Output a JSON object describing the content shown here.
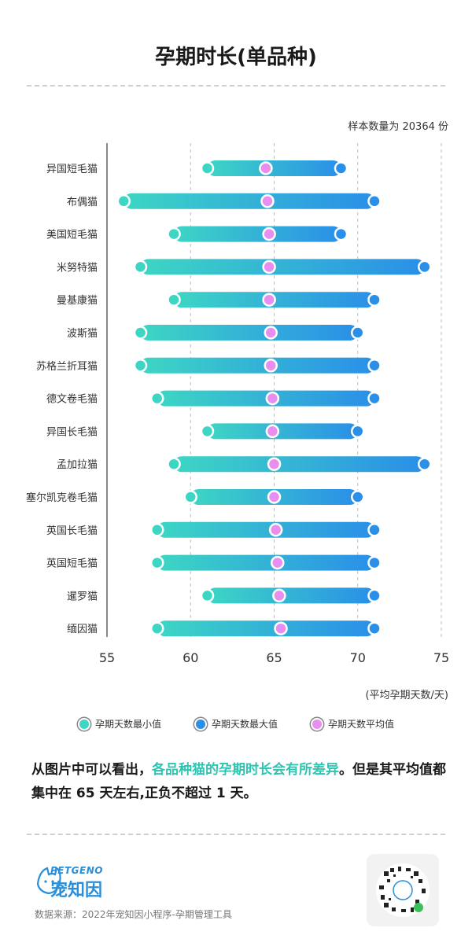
{
  "title": "孕期时长(单品种)",
  "sample_note": "样本数量为 20364 份",
  "unit_note": "(平均孕期天数/天)",
  "legend": {
    "min": "孕期天数最小值",
    "max": "孕期天数最大值",
    "avg": "孕期天数平均值"
  },
  "summary": {
    "part1": "从图片中可以看出，",
    "highlight": "各品种猫的孕期时长会有所差异",
    "part2": "。但是其平均值都集中在 65 天左右,正负不超过 1 天。"
  },
  "brand": {
    "en": "PETGENO",
    "cn": "宠知因"
  },
  "source": "数据来源：2022年宠知因小程序-孕期管理工具",
  "colors": {
    "min": "#3dd6c4",
    "max": "#2a8fe8",
    "avg": "#e88ef0",
    "highlight": "#2ec4b2"
  },
  "chart_data": {
    "type": "range-dot",
    "xlim": [
      55,
      75
    ],
    "xticks": [
      55,
      60,
      65,
      70,
      75
    ],
    "categories": [
      "异国短毛猫",
      "布偶猫",
      "美国短毛猫",
      "米努特猫",
      "曼基康猫",
      "波斯猫",
      "苏格兰折耳猫",
      "德文卷毛猫",
      "异国长毛猫",
      "孟加拉猫",
      "塞尔凯克卷毛猫",
      "英国长毛猫",
      "英国短毛猫",
      "暹罗猫",
      "缅因猫"
    ],
    "series": [
      {
        "name": "孕期天数最小值",
        "values": [
          61,
          56,
          59,
          57,
          59,
          57,
          57,
          58,
          61,
          59,
          60,
          58,
          58,
          61,
          58
        ]
      },
      {
        "name": "孕期天数最大值",
        "values": [
          69,
          71,
          69,
          74,
          71,
          70,
          71,
          71,
          70,
          74,
          70,
          71,
          71,
          71,
          71
        ]
      },
      {
        "name": "孕期天数平均值",
        "values": [
          64.5,
          64.6,
          64.7,
          64.7,
          64.7,
          64.8,
          64.8,
          64.9,
          64.9,
          65.0,
          65.0,
          65.1,
          65.2,
          65.3,
          65.4
        ]
      }
    ]
  }
}
